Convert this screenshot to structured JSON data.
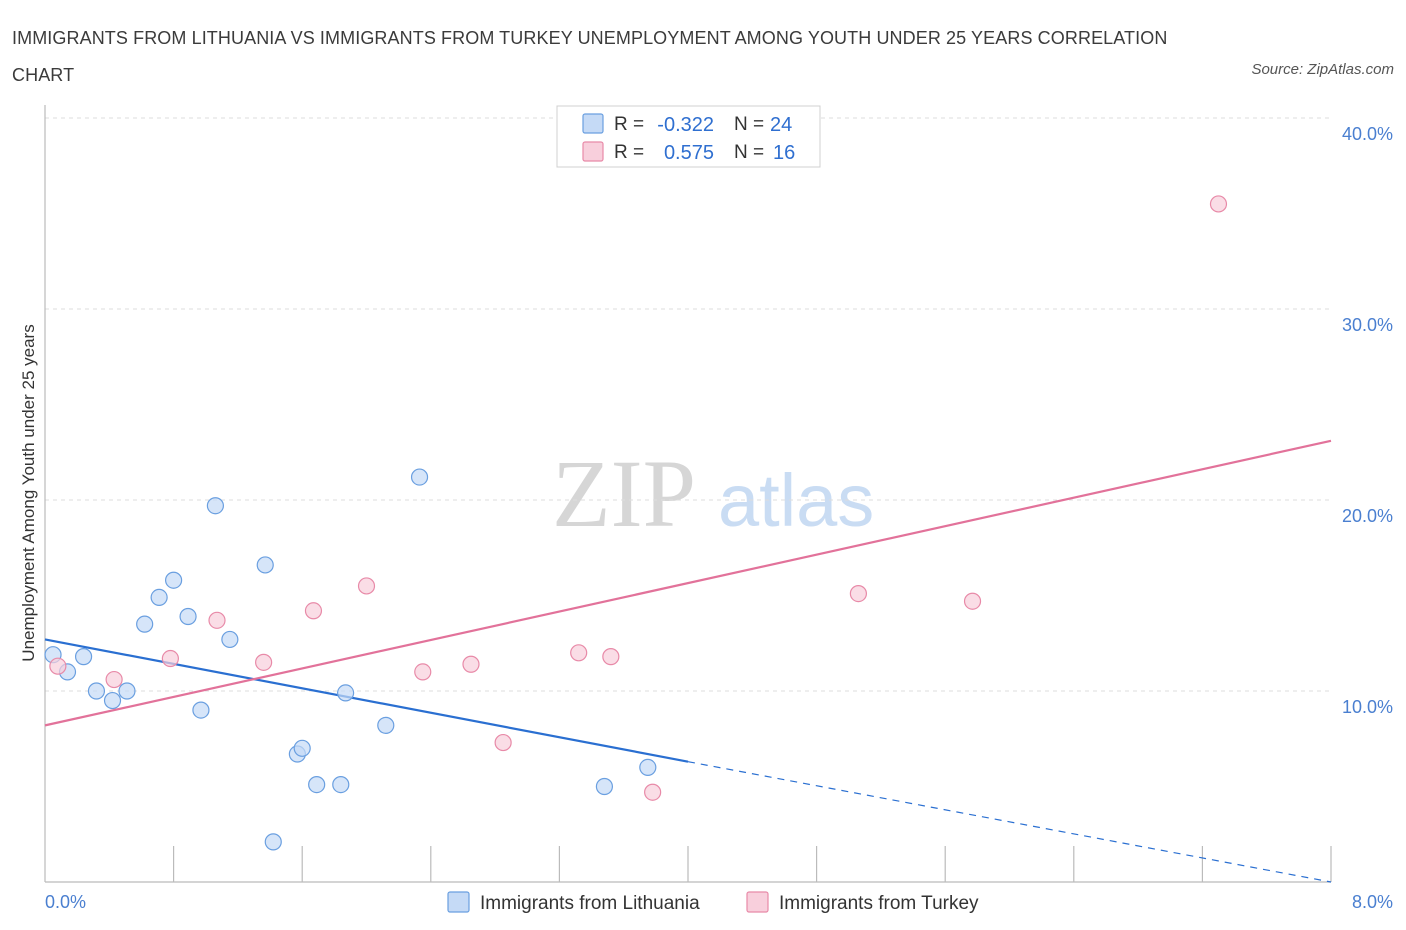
{
  "chart_data": {
    "type": "scatter",
    "title": "IMMIGRANTS FROM LITHUANIA VS IMMIGRANTS FROM TURKEY UNEMPLOYMENT AMONG YOUTH UNDER 25 YEARS CORRELATION CHART",
    "source": "Source: ZipAtlas.com",
    "ylabel": "Unemployment Among Youth under 25 years",
    "xlabel": "",
    "xlim": [
      0,
      8
    ],
    "ylim": [
      0,
      40
    ],
    "x_tick_labels": [
      "0.0%",
      "8.0%"
    ],
    "y_ticks": [
      10,
      20,
      30,
      40
    ],
    "y_tick_labels": [
      "10.0%",
      "20.0%",
      "30.0%",
      "40.0%"
    ],
    "grid": true,
    "watermark": {
      "zip": "ZIP",
      "atlas": "atlas"
    },
    "legend": {
      "placement": "top-center",
      "r_label": "R =",
      "n_label": "N =",
      "entries": [
        {
          "series": "Immigrants from Lithuania",
          "r": "-0.322",
          "n": "24"
        },
        {
          "series": "Immigrants from Turkey",
          "r": "0.575",
          "n": "16"
        }
      ]
    },
    "series": [
      {
        "name": "Immigrants from Lithuania",
        "color": "#6a9fe0",
        "fill": "#c5daf6",
        "line_color": "#2a6fd1",
        "trend": {
          "x0": 0.0,
          "y0": 12.7,
          "x1": 4.0,
          "y1": 6.3,
          "dashed_to_x": 8.0,
          "dashed_to_y": 0.0
        },
        "points": [
          {
            "x": 0.05,
            "y": 11.9
          },
          {
            "x": 0.14,
            "y": 11.0
          },
          {
            "x": 0.24,
            "y": 11.8
          },
          {
            "x": 0.32,
            "y": 10.0
          },
          {
            "x": 0.42,
            "y": 9.5
          },
          {
            "x": 0.51,
            "y": 10.0
          },
          {
            "x": 0.62,
            "y": 13.5
          },
          {
            "x": 0.71,
            "y": 14.9
          },
          {
            "x": 0.8,
            "y": 15.8
          },
          {
            "x": 0.89,
            "y": 13.9
          },
          {
            "x": 0.97,
            "y": 9.0
          },
          {
            "x": 1.06,
            "y": 19.7
          },
          {
            "x": 1.15,
            "y": 12.7
          },
          {
            "x": 1.37,
            "y": 16.6
          },
          {
            "x": 1.42,
            "y": 2.1
          },
          {
            "x": 1.57,
            "y": 6.7
          },
          {
            "x": 1.6,
            "y": 7.0
          },
          {
            "x": 1.69,
            "y": 5.1
          },
          {
            "x": 1.84,
            "y": 5.1
          },
          {
            "x": 1.87,
            "y": 9.9
          },
          {
            "x": 2.12,
            "y": 8.2
          },
          {
            "x": 2.33,
            "y": 21.2
          },
          {
            "x": 3.48,
            "y": 5.0
          },
          {
            "x": 3.75,
            "y": 6.0
          }
        ]
      },
      {
        "name": "Immigrants from Turkey",
        "color": "#e88aa8",
        "fill": "#f8cfdc",
        "line_color": "#e2729a",
        "trend": {
          "x0": 0.0,
          "y0": 8.2,
          "x1": 8.0,
          "y1": 23.1
        },
        "points": [
          {
            "x": 0.08,
            "y": 11.3
          },
          {
            "x": 0.43,
            "y": 10.6
          },
          {
            "x": 0.78,
            "y": 11.7
          },
          {
            "x": 1.07,
            "y": 13.7
          },
          {
            "x": 1.36,
            "y": 11.5
          },
          {
            "x": 1.67,
            "y": 14.2
          },
          {
            "x": 2.0,
            "y": 15.5
          },
          {
            "x": 2.35,
            "y": 11.0
          },
          {
            "x": 2.65,
            "y": 11.4
          },
          {
            "x": 2.85,
            "y": 7.3
          },
          {
            "x": 3.32,
            "y": 12.0
          },
          {
            "x": 3.52,
            "y": 11.8
          },
          {
            "x": 3.78,
            "y": 4.7
          },
          {
            "x": 5.06,
            "y": 15.1
          },
          {
            "x": 5.77,
            "y": 14.7
          },
          {
            "x": 7.3,
            "y": 35.5
          }
        ]
      }
    ]
  }
}
